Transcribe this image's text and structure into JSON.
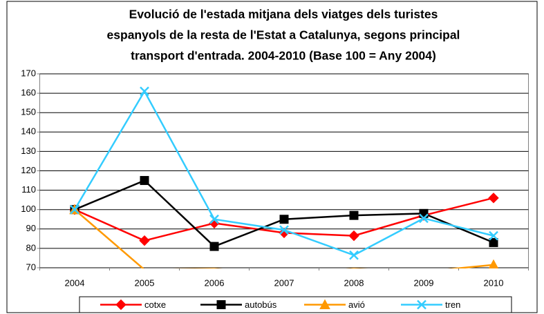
{
  "chart_data": {
    "type": "line",
    "title": [
      "Evolució de l'estada mitjana dels viatges dels turistes",
      "espanyols de la resta de l'Estat a Catalunya, segons principal",
      "transport d'entrada. 2004-2010 (Base 100 = Any 2004)"
    ],
    "categories": [
      "2004",
      "2005",
      "2006",
      "2007",
      "2008",
      "2009",
      "2010"
    ],
    "series": [
      {
        "name": "cotxe",
        "color": "#ff0000",
        "marker": "diamond",
        "values": [
          100,
          84,
          93,
          88,
          86.5,
          97,
          106
        ]
      },
      {
        "name": "autobús",
        "color": "#000000",
        "marker": "square",
        "values": [
          100,
          115,
          81,
          95,
          97,
          98,
          83
        ]
      },
      {
        "name": "avió",
        "color": "#ff9900",
        "marker": "triangle",
        "values": [
          100,
          69,
          69.5,
          67,
          69.5,
          68,
          71.5
        ]
      },
      {
        "name": "tren",
        "color": "#33ccff",
        "marker": "x",
        "values": [
          100,
          161,
          95,
          89.5,
          76.5,
          95.5,
          86.5
        ]
      }
    ],
    "ylim": [
      70,
      170
    ],
    "yticks": [
      70,
      80,
      90,
      100,
      110,
      120,
      130,
      140,
      150,
      160,
      170
    ],
    "grid": true,
    "legend": "bottom"
  }
}
